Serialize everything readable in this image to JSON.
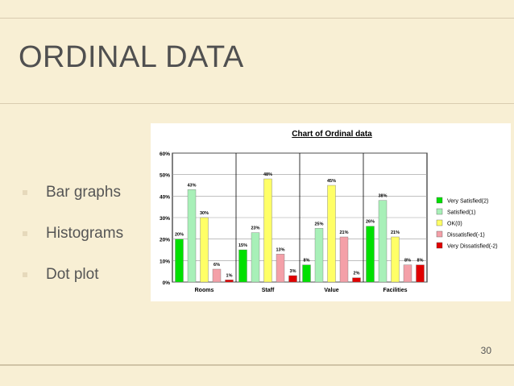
{
  "slide": {
    "title": "ORDINAL DATA",
    "bullets": [
      "Bar graphs",
      "Histograms",
      "Dot plot"
    ],
    "page_number": "30"
  },
  "colors": {
    "background": "#f8efd4",
    "title": "#505050",
    "bullet_marker": "#e6d9bb"
  },
  "chart_data": {
    "type": "bar",
    "title": "Chart of Ordinal data",
    "categories": [
      "Rooms",
      "Staff",
      "Value",
      "Facilities"
    ],
    "ylim": [
      0,
      60
    ],
    "yticks": [
      "0%",
      "10%",
      "20%",
      "30%",
      "40%",
      "50%",
      "60%"
    ],
    "grid": true,
    "legend_position": "right",
    "series": [
      {
        "name": "Very Satisfied(2)",
        "color": "#00e000",
        "values": [
          20,
          15,
          8,
          26
        ],
        "labels": [
          "20%",
          "15%",
          "8%",
          "26%"
        ]
      },
      {
        "name": "Satisfied(1)",
        "color": "#a8f0b8",
        "values": [
          43,
          23,
          25,
          38
        ],
        "labels": [
          "43%",
          "23%",
          "25%",
          "38%"
        ]
      },
      {
        "name": "OK(0)",
        "color": "#ffff66",
        "values": [
          30,
          48,
          45,
          21
        ],
        "labels": [
          "30%",
          "48%",
          "45%",
          "21%"
        ]
      },
      {
        "name": "Dissatisfied(-1)",
        "color": "#f4a0a8",
        "values": [
          6,
          13,
          21,
          8
        ],
        "labels": [
          "6%",
          "13%",
          "21%",
          "8%"
        ]
      },
      {
        "name": "Very Dissatisfied(-2)",
        "color": "#e00000",
        "values": [
          1,
          3,
          2,
          8
        ],
        "labels": [
          "1%",
          "3%",
          "2%",
          "8%"
        ]
      }
    ]
  }
}
